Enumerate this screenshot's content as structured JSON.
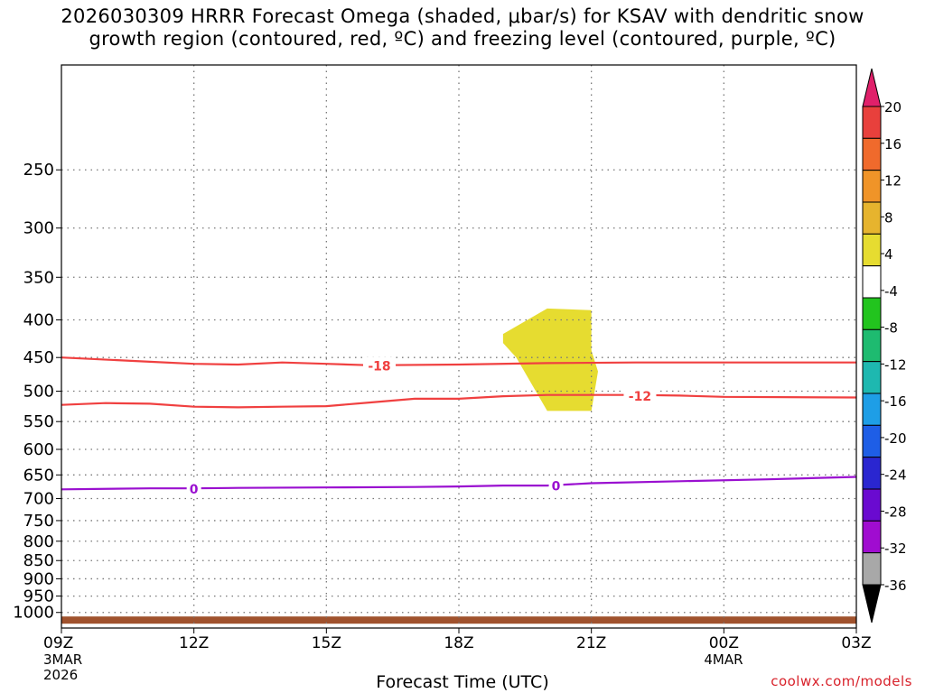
{
  "title": {
    "line1": "2026030309 HRRR Forecast Omega (shaded, μbar/s) for KSAV with dendritic snow",
    "line2": "growth region (contoured, red, ºC) and freezing level (contoured, purple, ºC)"
  },
  "credit": "coolwx.com/models",
  "chart_data": {
    "type": "time-height",
    "xlabel": "Forecast Time (UTC)",
    "ylabel": "",
    "x_range_hours": [
      0,
      18
    ],
    "x_ticks": [
      {
        "hour": 0,
        "label": "09Z",
        "sub": [
          "3MAR",
          "2026"
        ]
      },
      {
        "hour": 3,
        "label": "12Z",
        "sub": []
      },
      {
        "hour": 6,
        "label": "15Z",
        "sub": []
      },
      {
        "hour": 9,
        "label": "18Z",
        "sub": []
      },
      {
        "hour": 12,
        "label": "21Z",
        "sub": []
      },
      {
        "hour": 15,
        "label": "00Z",
        "sub": [
          "4MAR"
        ]
      },
      {
        "hour": 18,
        "label": "03Z",
        "sub": []
      }
    ],
    "y_axis": {
      "scale": "log",
      "inverted": true,
      "range_mb": [
        1050,
        180
      ],
      "ticks": [
        250,
        300,
        350,
        400,
        450,
        500,
        550,
        600,
        650,
        700,
        750,
        800,
        850,
        900,
        950,
        1000
      ]
    },
    "grid": true,
    "colorbar": {
      "labels": [
        "20",
        "16",
        "12",
        "8",
        "4",
        "-4",
        "-8",
        "-12",
        "-16",
        "-20",
        "-24",
        "-28",
        "-32",
        "-36"
      ],
      "colors": [
        "#e0206a",
        "#e8403c",
        "#f06a2c",
        "#f09428",
        "#e6b42e",
        "#e6dc30",
        "#ffffff",
        "#22c41e",
        "#1ebb70",
        "#1eb8b0",
        "#1e9ee6",
        "#1e5ee6",
        "#2a26d0",
        "#6a0ad0",
        "#a00cd0",
        "#a8a8a8",
        "#000000"
      ]
    },
    "contours": [
      {
        "label": "-18",
        "color": "#f04040",
        "points": [
          [
            0,
            450
          ],
          [
            2,
            456
          ],
          [
            3,
            459
          ],
          [
            4,
            460
          ],
          [
            5,
            457
          ],
          [
            6,
            459
          ],
          [
            7,
            461
          ],
          [
            9,
            460
          ],
          [
            11,
            458
          ],
          [
            13,
            457
          ],
          [
            15,
            457
          ],
          [
            18,
            457
          ]
        ],
        "label_at": 7.2
      },
      {
        "label": "-12",
        "color": "#f04040",
        "points": [
          [
            0,
            522
          ],
          [
            1,
            519
          ],
          [
            2,
            520
          ],
          [
            3,
            525
          ],
          [
            4,
            526
          ],
          [
            5,
            525
          ],
          [
            6,
            524
          ],
          [
            7,
            518
          ],
          [
            8,
            512
          ],
          [
            9,
            512
          ],
          [
            10,
            508
          ],
          [
            11,
            506
          ],
          [
            12,
            506
          ],
          [
            13,
            506
          ],
          [
            14,
            507
          ],
          [
            15,
            509
          ],
          [
            18,
            510
          ]
        ],
        "label_at": 13.1
      },
      {
        "label": "0",
        "color": "#9a10d0",
        "points": [
          [
            0,
            680
          ],
          [
            2,
            678
          ],
          [
            3,
            678
          ],
          [
            4,
            677
          ],
          [
            6,
            676
          ],
          [
            8,
            675
          ],
          [
            9,
            674
          ],
          [
            10,
            672
          ],
          [
            11,
            672
          ],
          [
            12,
            667
          ],
          [
            14,
            663
          ],
          [
            16,
            659
          ],
          [
            18,
            654
          ]
        ],
        "label_at": 3.0,
        "label2_at": 11.2
      }
    ],
    "shaded_regions": [
      {
        "value_range": "4 to 8",
        "color": "#e6dc30",
        "polygon": [
          [
            10.0,
            418
          ],
          [
            11.0,
            386
          ],
          [
            12.0,
            388
          ],
          [
            12.0,
            440
          ],
          [
            12.15,
            470
          ],
          [
            12.0,
            532
          ],
          [
            11.0,
            532
          ],
          [
            10.3,
            450
          ],
          [
            10.0,
            430
          ]
        ]
      }
    ],
    "terrain": {
      "color": "#a0522d",
      "surface_mb": 1030
    }
  }
}
